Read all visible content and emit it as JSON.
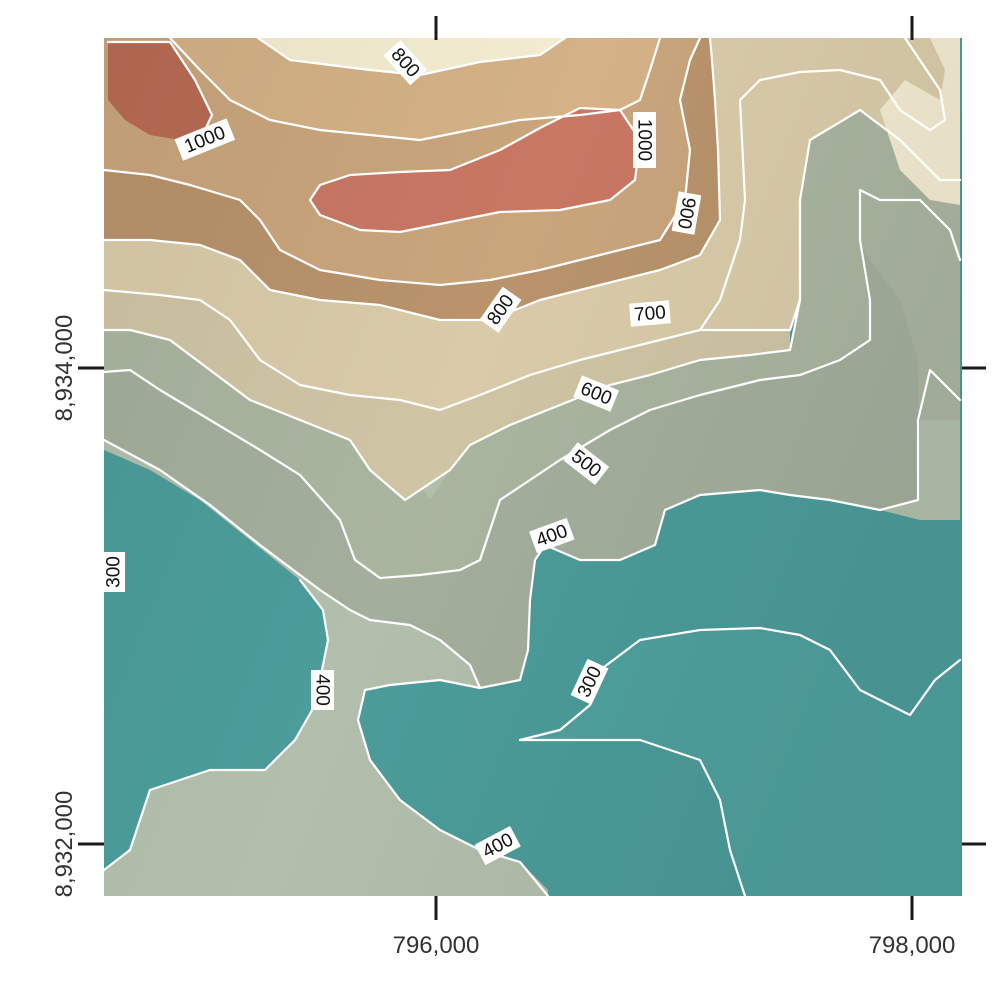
{
  "map": {
    "x_ticks": [
      "796,000",
      "798,000"
    ],
    "y_ticks": [
      "8,934,000",
      "8,932,000"
    ],
    "contour_labels": [
      "800",
      "1000",
      "1000",
      "900",
      "800",
      "700",
      "600",
      "500",
      "400",
      "300",
      "400",
      "300",
      "400"
    ],
    "colors": {
      "high_red": "#c87a63",
      "brown": "#bb936c",
      "tan": "#d8c4a0",
      "cream": "#f4eed2",
      "sage": "#a7b4a2",
      "teal": "#4b9c9a",
      "contour": "#ffffff"
    }
  }
}
